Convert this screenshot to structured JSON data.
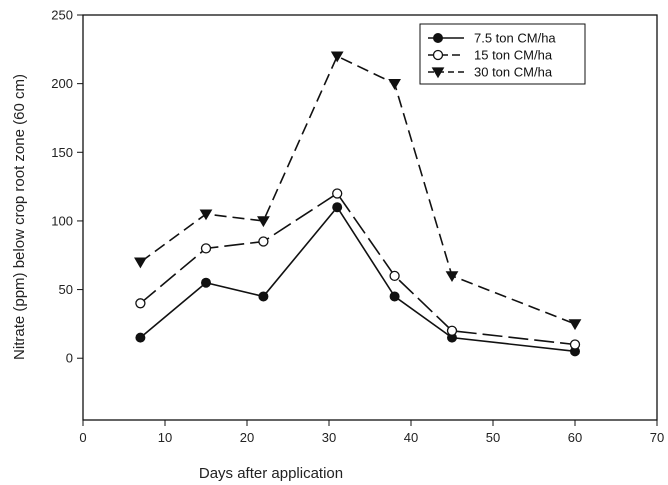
{
  "chart_data": {
    "type": "line",
    "xlabel": "Days after application",
    "ylabel": "Nitrate (ppm) below crop root zone (60 cm)",
    "xlim": [
      0,
      70
    ],
    "ylim": [
      -45,
      250
    ],
    "xticks": [
      0,
      10,
      20,
      30,
      40,
      50,
      60,
      70
    ],
    "yticks": [
      0,
      50,
      100,
      150,
      200,
      250
    ],
    "grid": false,
    "legend_position": "top-right",
    "x": [
      7,
      15,
      22,
      31,
      38,
      45,
      60
    ],
    "series": [
      {
        "name": "7.5 ton CM/ha",
        "marker": "filled-circle",
        "line": "solid",
        "values": [
          15,
          55,
          45,
          110,
          45,
          15,
          5
        ]
      },
      {
        "name": "15 ton CM/ha",
        "marker": "open-circle",
        "line": "long-dash",
        "values": [
          40,
          80,
          85,
          120,
          60,
          20,
          10
        ]
      },
      {
        "name": "30 ton CM/ha",
        "marker": "filled-triangle-down",
        "line": "dash",
        "values": [
          70,
          105,
          100,
          220,
          200,
          60,
          25
        ]
      }
    ]
  }
}
